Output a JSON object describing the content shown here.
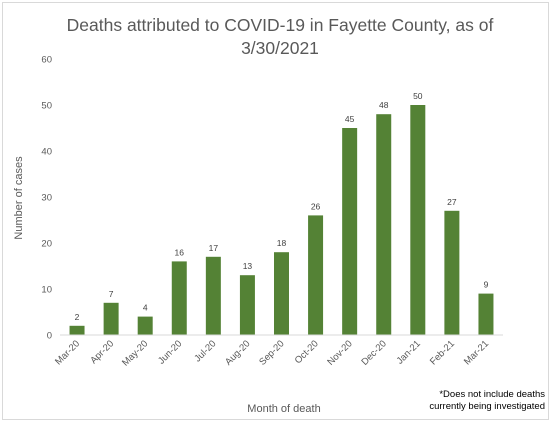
{
  "chart_data": {
    "type": "bar",
    "title": "Deaths attributed to COVID-19 in Fayette County, as of 3/30/2021",
    "xlabel": "Month of death",
    "ylabel": "Number of cases",
    "categories": [
      "Mar-20",
      "Apr-20",
      "May-20",
      "Jun-20",
      "Jul-20",
      "Aug-20",
      "Sep-20",
      "Oct-20",
      "Nov-20",
      "Dec-20",
      "Jan-21",
      "Feb-21",
      "Mar-21"
    ],
    "values": [
      2,
      7,
      4,
      16,
      17,
      13,
      18,
      26,
      45,
      48,
      50,
      27,
      9
    ],
    "ylim": [
      0,
      60
    ],
    "yticks": [
      0,
      10,
      20,
      30,
      40,
      50,
      60
    ],
    "grid": false,
    "legend": "none",
    "bar_color": "#548235",
    "data_labels": true
  },
  "footnote": {
    "line1": "*Does not include deaths",
    "line2": "currently being investigated"
  }
}
